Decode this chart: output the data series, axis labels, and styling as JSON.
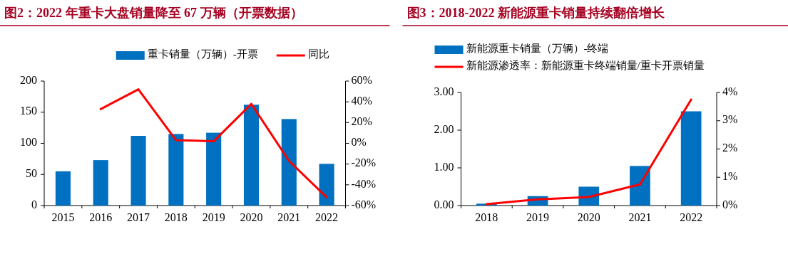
{
  "chart_data": [
    {
      "type": "bar",
      "title": "图2：2022 年重卡大盘销量降至 67 万辆（开票数据）",
      "categories": [
        "2015",
        "2016",
        "2017",
        "2018",
        "2019",
        "2020",
        "2021",
        "2022"
      ],
      "series": [
        {
          "name": "重卡销量（万辆）-开票",
          "color": "#0070c0",
          "values": [
            55,
            73,
            112,
            115,
            117,
            162,
            139,
            67
          ]
        },
        {
          "type": "line",
          "axis": "y2",
          "name": "同比",
          "color": "#ff0000",
          "values": [
            null,
            33,
            52,
            3,
            2,
            38,
            -17,
            -52
          ]
        }
      ],
      "ylim": [
        0,
        200
      ],
      "yticks": [
        0,
        50,
        100,
        150,
        200
      ],
      "y2lim": [
        -60,
        60
      ],
      "y2ticks": [
        {
          "value": -60,
          "label": "-60%"
        },
        {
          "value": -40,
          "label": "-40%"
        },
        {
          "value": -20,
          "label": "-20%"
        },
        {
          "value": 0,
          "label": "0%"
        },
        {
          "value": 20,
          "label": "20%"
        },
        {
          "value": 40,
          "label": "40%"
        },
        {
          "value": 60,
          "label": "60%"
        }
      ],
      "legend": "top"
    },
    {
      "type": "bar",
      "title": "图3：2018-2022 新能源重卡销量持续翻倍增长",
      "categories": [
        "2018",
        "2019",
        "2020",
        "2021",
        "2022"
      ],
      "series": [
        {
          "name": "新能源重卡销量（万辆）-终端",
          "color": "#0070c0",
          "values": [
            0.05,
            0.25,
            0.5,
            1.05,
            2.5
          ]
        },
        {
          "type": "line",
          "axis": "y2",
          "name": "新能源渗透率：新能源重卡终端销量/重卡开票销量",
          "color": "#ff0000",
          "values": [
            0.05,
            0.22,
            0.3,
            0.75,
            3.75
          ]
        }
      ],
      "ylim": [
        0,
        3
      ],
      "yticks": [
        {
          "value": 0,
          "label": "0.00"
        },
        {
          "value": 1,
          "label": "1.00"
        },
        {
          "value": 2,
          "label": "2.00"
        },
        {
          "value": 3,
          "label": "3.00"
        }
      ],
      "y2lim": [
        0,
        4
      ],
      "y2ticks": [
        {
          "value": 0,
          "label": "0%"
        },
        {
          "value": 1,
          "label": "1%"
        },
        {
          "value": 2,
          "label": "2%"
        },
        {
          "value": 3,
          "label": "3%"
        },
        {
          "value": 4,
          "label": "4%"
        }
      ],
      "legend": "top"
    }
  ]
}
